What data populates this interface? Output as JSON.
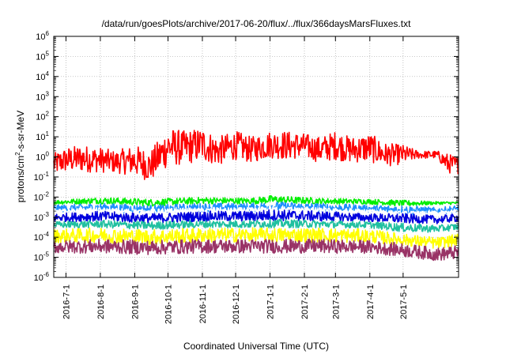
{
  "chart_data": {
    "type": "line",
    "title": "/data/run/goesPlots/archive/2017-06-20/flux/../flux/366daysMarsFluxes.txt",
    "xlabel": "Coordinated Universal Time (UTC)",
    "ylabel_prefix": "protons/cm",
    "ylabel_sup": "2",
    "ylabel_suffix": "-s-sr-MeV",
    "yscale": "log",
    "ylim": [
      1e-06,
      1000000.0
    ],
    "xlim": [
      "2016-06-20",
      "2017-06-20"
    ],
    "grid": true,
    "y_ticks": [
      {
        "base": "10",
        "exp": "-6",
        "value": 1e-06
      },
      {
        "base": "10",
        "exp": "-5",
        "value": 1e-05
      },
      {
        "base": "10",
        "exp": "-4",
        "value": 0.0001
      },
      {
        "base": "10",
        "exp": "-3",
        "value": 0.001
      },
      {
        "base": "10",
        "exp": "-2",
        "value": 0.01
      },
      {
        "base": "10",
        "exp": "-1",
        "value": 0.1
      },
      {
        "base": "10",
        "exp": "0",
        "value": 1
      },
      {
        "base": "10",
        "exp": "1",
        "value": 10.0
      },
      {
        "base": "10",
        "exp": "2",
        "value": 100.0
      },
      {
        "base": "10",
        "exp": "3",
        "value": 1000.0
      },
      {
        "base": "10",
        "exp": "4",
        "value": 10000.0
      },
      {
        "base": "10",
        "exp": "5",
        "value": 100000.0
      },
      {
        "base": "10",
        "exp": "6",
        "value": 1000000.0
      }
    ],
    "x_ticks": [
      {
        "label": "2016-7-1",
        "date": "2016-07-01"
      },
      {
        "label": "2016-8-1",
        "date": "2016-08-01"
      },
      {
        "label": "2016-9-1",
        "date": "2016-09-01"
      },
      {
        "label": "2016-10-1",
        "date": "2016-10-01"
      },
      {
        "label": "2016-11-1",
        "date": "2016-11-01"
      },
      {
        "label": "2016-12-1",
        "date": "2016-12-01"
      },
      {
        "label": "2017-1-1",
        "date": "2017-01-01"
      },
      {
        "label": "2017-2-1",
        "date": "2017-02-01"
      },
      {
        "label": "2017-3-1",
        "date": "2017-03-01"
      },
      {
        "label": "2017-4-1",
        "date": "2017-04-01"
      },
      {
        "label": "2017-5-1",
        "date": "2017-05-01"
      }
    ],
    "series": [
      {
        "color": "#ff0000",
        "x": [
          "2016-06-20",
          "2016-07-01",
          "2016-07-15",
          "2016-08-01",
          "2016-08-15",
          "2016-09-01",
          "2016-09-15",
          "2016-10-01",
          "2016-10-15",
          "2016-11-01",
          "2016-11-15",
          "2016-12-01",
          "2016-12-15",
          "2017-01-01",
          "2017-01-15",
          "2017-02-01",
          "2017-02-15",
          "2017-03-01",
          "2017-03-15",
          "2017-04-01",
          "2017-04-15",
          "2017-05-01",
          "2017-05-15",
          "2017-06-01",
          "2017-06-10",
          "2017-06-20"
        ],
        "y_min": [
          0.08,
          0.1,
          0.1,
          0.1,
          0.1,
          0.06,
          0.03,
          0.15,
          0.2,
          0.3,
          0.2,
          0.4,
          0.3,
          0.5,
          0.4,
          0.5,
          0.3,
          0.4,
          0.3,
          0.3,
          0.2,
          0.3,
          0.7,
          0.7,
          0.1,
          0.1
        ],
        "y_max": [
          1.5,
          3,
          4,
          3,
          2,
          4,
          2,
          30,
          20,
          30,
          10,
          20,
          10,
          20,
          20,
          15,
          10,
          20,
          10,
          15,
          5,
          4,
          2,
          2,
          1.5,
          1
        ]
      },
      {
        "color": "#00ee00",
        "x": [
          "2016-06-20",
          "2016-08-01",
          "2016-09-15",
          "2016-11-01",
          "2016-12-15",
          "2017-01-01",
          "2017-02-15",
          "2017-04-01",
          "2017-05-01",
          "2017-06-01",
          "2017-06-20"
        ],
        "y_min": [
          0.004,
          0.004,
          0.003,
          0.004,
          0.004,
          0.004,
          0.004,
          0.004,
          0.003,
          0.004,
          0.004
        ],
        "y_max": [
          0.007,
          0.01,
          0.008,
          0.01,
          0.009,
          0.012,
          0.009,
          0.008,
          0.007,
          0.006,
          0.006
        ]
      },
      {
        "color": "#1e90ff",
        "x": [
          "2016-06-20",
          "2016-08-01",
          "2016-09-15",
          "2016-11-01",
          "2016-12-15",
          "2017-01-01",
          "2017-02-15",
          "2017-04-01",
          "2017-05-01",
          "2017-06-01",
          "2017-06-20"
        ],
        "y_min": [
          0.0015,
          0.0015,
          0.0012,
          0.0015,
          0.0015,
          0.0015,
          0.0015,
          0.0015,
          0.001,
          0.0012,
          0.0015
        ],
        "y_max": [
          0.004,
          0.005,
          0.004,
          0.005,
          0.005,
          0.006,
          0.005,
          0.004,
          0.004,
          0.003,
          0.004
        ]
      },
      {
        "color": "#ffffff",
        "x": [
          "2016-06-20",
          "2016-08-01",
          "2016-09-15",
          "2016-11-01",
          "2016-12-15",
          "2017-01-01",
          "2017-02-15",
          "2017-04-01",
          "2017-05-01",
          "2017-06-01",
          "2017-06-20"
        ],
        "y_min": [
          0.0012,
          0.0012,
          0.001,
          0.0012,
          0.0012,
          0.0013,
          0.0012,
          0.0012,
          0.0009,
          0.001,
          0.0012
        ],
        "y_max": [
          0.0025,
          0.003,
          0.0025,
          0.003,
          0.003,
          0.0035,
          0.003,
          0.0025,
          0.002,
          0.002,
          0.0025
        ]
      },
      {
        "color": "#0000dd",
        "x": [
          "2016-06-20",
          "2016-08-01",
          "2016-09-15",
          "2016-11-01",
          "2016-12-15",
          "2017-01-01",
          "2017-02-15",
          "2017-04-01",
          "2017-05-01",
          "2017-06-01",
          "2017-06-20"
        ],
        "y_min": [
          0.0005,
          0.0005,
          0.0004,
          0.0005,
          0.0005,
          0.0005,
          0.0005,
          0.0005,
          0.0004,
          0.0004,
          0.0005
        ],
        "y_max": [
          0.0015,
          0.002,
          0.0015,
          0.002,
          0.002,
          0.0025,
          0.002,
          0.0015,
          0.0015,
          0.0012,
          0.0015
        ]
      },
      {
        "color": "#20c0a0",
        "x": [
          "2016-06-20",
          "2016-08-01",
          "2016-09-15",
          "2016-11-01",
          "2016-12-15",
          "2017-01-01",
          "2017-02-15",
          "2017-04-01",
          "2017-05-01",
          "2017-06-01",
          "2017-06-20"
        ],
        "y_min": [
          0.00025,
          0.00025,
          0.0002,
          0.00025,
          0.00025,
          0.00025,
          0.00025,
          0.00025,
          0.00015,
          0.00015,
          0.0002
        ],
        "y_max": [
          0.0006,
          0.0007,
          0.0006,
          0.0007,
          0.0007,
          0.0008,
          0.0007,
          0.0006,
          0.0005,
          0.0004,
          0.0005
        ]
      },
      {
        "color": "#ffff00",
        "x": [
          "2016-06-20",
          "2016-08-01",
          "2016-09-15",
          "2016-11-01",
          "2016-12-15",
          "2017-01-01",
          "2017-02-15",
          "2017-04-01",
          "2017-05-01",
          "2017-06-01",
          "2017-06-20"
        ],
        "y_min": [
          4e-05,
          4e-05,
          3e-05,
          4e-05,
          4e-05,
          4e-05,
          4e-05,
          4e-05,
          3e-05,
          2e-05,
          3e-05
        ],
        "y_max": [
          0.00025,
          0.0003,
          0.00025,
          0.0003,
          0.0003,
          0.0003,
          0.0003,
          0.00025,
          0.00015,
          0.0001,
          0.00015
        ]
      },
      {
        "color": "#993366",
        "x": [
          "2016-06-20",
          "2016-08-01",
          "2016-09-15",
          "2016-11-01",
          "2016-12-15",
          "2017-01-01",
          "2017-02-15",
          "2017-04-01",
          "2017-05-01",
          "2017-06-01",
          "2017-06-20"
        ],
        "y_min": [
          1.2e-05,
          1.2e-05,
          1e-05,
          1.2e-05,
          1.2e-05,
          1.2e-05,
          1.2e-05,
          1.2e-05,
          8e-06,
          5e-06,
          6e-06
        ],
        "y_max": [
          7e-05,
          8e-05,
          7e-05,
          8e-05,
          8e-05,
          8e-05,
          8e-05,
          7e-05,
          5e-05,
          3e-05,
          4e-05
        ]
      }
    ]
  }
}
